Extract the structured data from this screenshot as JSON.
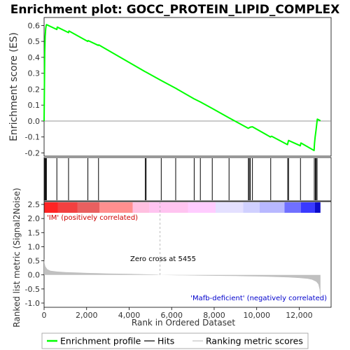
{
  "chart_data": [
    {
      "panel": "enrichment",
      "type": "line",
      "title": "Enrichment plot: GOCC_PROTEIN_LIPID_COMPLEX",
      "ylabel": "Enrichment score (ES)",
      "xlim": [
        0,
        13500
      ],
      "ylim": [
        -0.22,
        0.65
      ],
      "yticks": [
        "-0.2",
        "-0.1",
        "0.0",
        "0.1",
        "0.2",
        "0.3",
        "0.4",
        "0.5",
        "0.6"
      ],
      "series": [
        {
          "name": "Enrichment profile",
          "color": "#00ff00",
          "x": [
            0,
            30,
            50,
            75,
            100,
            115,
            600,
            620,
            1150,
            1170,
            2050,
            2070,
            2550,
            2570,
            4750,
            4800,
            5500,
            6200,
            7050,
            7350,
            7900,
            8700,
            9600,
            9650,
            9700,
            9800,
            10650,
            10700,
            11450,
            11480,
            11500,
            12050,
            12080,
            12700,
            12720,
            12750,
            12790,
            12830,
            12850,
            13000
          ],
          "y": [
            0.0,
            0.43,
            0.53,
            0.58,
            0.6,
            0.605,
            0.575,
            0.59,
            0.555,
            0.565,
            0.5,
            0.505,
            0.475,
            0.478,
            0.31,
            0.307,
            0.255,
            0.205,
            0.14,
            0.12,
            0.08,
            0.02,
            -0.045,
            -0.042,
            -0.038,
            -0.036,
            -0.1,
            -0.095,
            -0.148,
            -0.13,
            -0.122,
            -0.155,
            -0.138,
            -0.185,
            -0.14,
            -0.1,
            -0.06,
            -0.01,
            0.012,
            0.002
          ]
        }
      ],
      "hits": [
        30,
        60,
        90,
        110,
        600,
        1150,
        2060,
        2560,
        4760,
        4800,
        5510,
        6190,
        7060,
        7350,
        7910,
        8700,
        9610,
        9650,
        9700,
        9800,
        10660,
        11460,
        11500,
        12060,
        12710,
        12760,
        12800,
        12840
      ],
      "zero_line": 0
    },
    {
      "panel": "ranked-list-metric",
      "type": "area",
      "xlabel": "Rank in Ordered Dataset",
      "ylabel": "Ranked list metric (Signal2Noise)",
      "xlim": [
        0,
        13500
      ],
      "ylim": [
        -1.15,
        2.6
      ],
      "yticks": [
        "-1.0",
        "-0.5",
        "0.0",
        "0.5",
        "1.0",
        "1.5",
        "2.0",
        "2.5"
      ],
      "xticks": [
        "0",
        "2,000",
        "4,000",
        "6,000",
        "8,000",
        "10,000",
        "12,000"
      ],
      "x": [
        0,
        20,
        60,
        150,
        300,
        600,
        1000,
        1500,
        2000,
        2500,
        3000,
        4000,
        4800,
        5300,
        5455,
        5600,
        6500,
        7500,
        8500,
        9000,
        9500,
        10000,
        10500,
        11000,
        11500,
        12000,
        12400,
        12600,
        12800,
        12900,
        12960,
        12990,
        13000
      ],
      "values": [
        0.58,
        0.42,
        0.3,
        0.2,
        0.15,
        0.12,
        0.1,
        0.085,
        0.07,
        0.06,
        0.05,
        0.035,
        0.02,
        0.01,
        0.0,
        -0.005,
        -0.015,
        -0.025,
        -0.035,
        -0.04,
        -0.048,
        -0.055,
        -0.062,
        -0.075,
        -0.09,
        -0.11,
        -0.14,
        -0.17,
        -0.24,
        -0.33,
        -0.52,
        -0.82,
        -1.05
      ],
      "zero_cross_rank": 5455,
      "fill_color": "#c0c0c0"
    }
  ],
  "annotations": {
    "zero_cross": "Zero cross at 5455",
    "positive": "'IM' (positively correlated)",
    "negative": "'Mafb-deficient' (negatively correlated)"
  },
  "colors": {
    "enrichment_line": "#00ff00",
    "hit_line": "#000000",
    "positive_label": "#cc0000",
    "negative_label": "#0000cc",
    "metric_fill": "#c0c0c0"
  },
  "heat_bar": {
    "colors": [
      "#ff2424",
      "#f24040",
      "#e86060",
      "#ff8f8f",
      "#ffc0e0",
      "#ffc4f0",
      "#ffccff",
      "#e4e0ff",
      "#d0d0ff",
      "#b8b8ff",
      "#7070ff",
      "#3a3aff",
      "#0c0cc8"
    ],
    "stops": [
      0,
      0.05,
      0.12,
      0.2,
      0.32,
      0.38,
      0.52,
      0.62,
      0.72,
      0.78,
      0.87,
      0.93,
      0.98,
      1.0
    ]
  },
  "legend": {
    "items": [
      {
        "label": "Enrichment profile",
        "swatch": "green-line"
      },
      {
        "label": "Hits",
        "swatch": "black-line"
      },
      {
        "label": "Ranking metric scores",
        "swatch": "gray-line"
      }
    ]
  }
}
